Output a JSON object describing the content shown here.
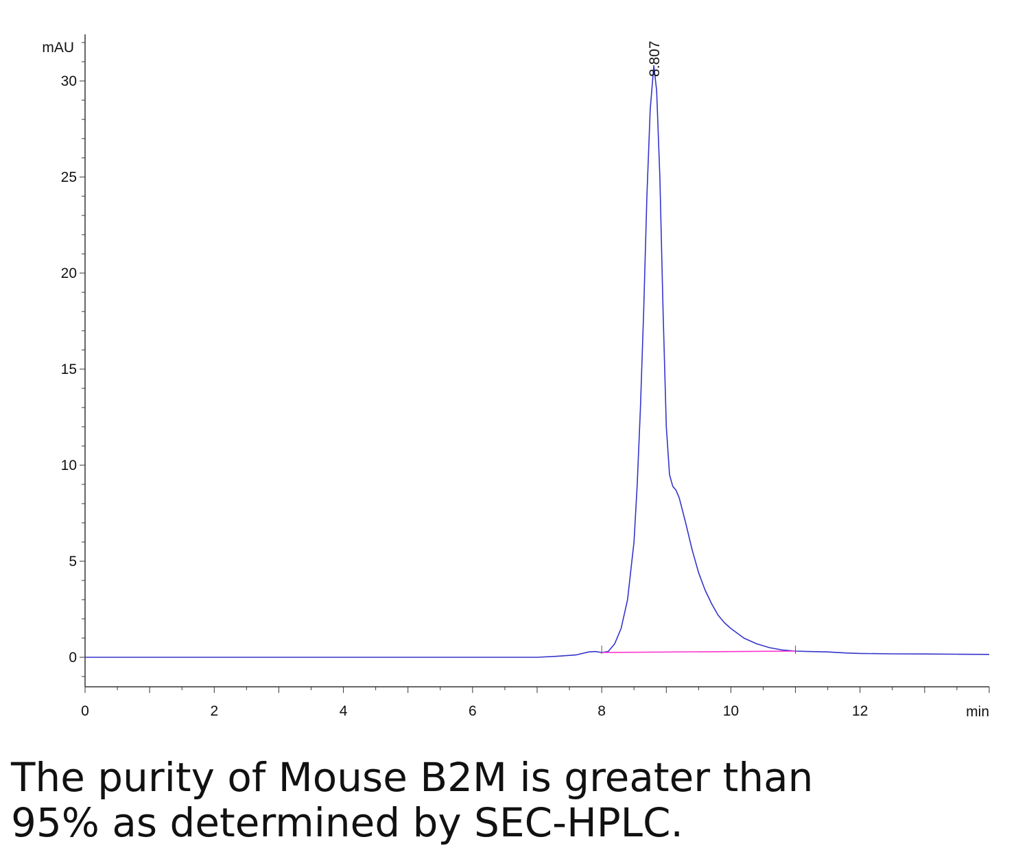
{
  "caption": {
    "line1": "The purity of Mouse B2M is greater than",
    "line2": "95% as determined by SEC-HPLC."
  },
  "chart_data": {
    "type": "line",
    "title": "",
    "xlabel": "min",
    "ylabel": "mAU",
    "xlim": [
      0,
      14
    ],
    "ylim": [
      -1.5,
      32.5
    ],
    "x_ticks": [
      "0",
      "2",
      "4",
      "6",
      "8",
      "10",
      "12"
    ],
    "y_ticks": [
      "0",
      "5",
      "10",
      "15",
      "20",
      "25",
      "30"
    ],
    "grid": false,
    "legend": "none",
    "peak_labels": [
      {
        "x": 8.807,
        "y": 31.0,
        "label": "8.807"
      }
    ],
    "series": [
      {
        "color": "#3333cc",
        "points": [
          [
            0,
            0.0
          ],
          [
            1,
            0.0
          ],
          [
            2,
            0.0
          ],
          [
            3,
            0.0
          ],
          [
            4,
            0.0
          ],
          [
            5,
            0.0
          ],
          [
            6,
            0.0
          ],
          [
            7.0,
            0.0
          ],
          [
            7.3,
            0.05
          ],
          [
            7.6,
            0.12
          ],
          [
            7.8,
            0.28
          ],
          [
            7.9,
            0.3
          ],
          [
            8.0,
            0.25
          ],
          [
            8.1,
            0.3
          ],
          [
            8.2,
            0.7
          ],
          [
            8.3,
            1.5
          ],
          [
            8.4,
            3.0
          ],
          [
            8.5,
            6.0
          ],
          [
            8.55,
            9.0
          ],
          [
            8.6,
            13.0
          ],
          [
            8.65,
            18.0
          ],
          [
            8.7,
            24.0
          ],
          [
            8.75,
            28.5
          ],
          [
            8.807,
            30.8
          ],
          [
            8.85,
            29.5
          ],
          [
            8.9,
            25.0
          ],
          [
            8.95,
            18.0
          ],
          [
            9.0,
            12.0
          ],
          [
            9.05,
            9.5
          ],
          [
            9.1,
            8.9
          ],
          [
            9.15,
            8.7
          ],
          [
            9.2,
            8.3
          ],
          [
            9.3,
            7.0
          ],
          [
            9.4,
            5.6
          ],
          [
            9.5,
            4.4
          ],
          [
            9.6,
            3.5
          ],
          [
            9.7,
            2.8
          ],
          [
            9.8,
            2.2
          ],
          [
            9.9,
            1.8
          ],
          [
            10.0,
            1.5
          ],
          [
            10.2,
            1.0
          ],
          [
            10.4,
            0.7
          ],
          [
            10.6,
            0.5
          ],
          [
            10.8,
            0.38
          ],
          [
            11.0,
            0.32
          ],
          [
            11.2,
            0.3
          ],
          [
            11.5,
            0.28
          ],
          [
            11.8,
            0.22
          ],
          [
            12.0,
            0.2
          ],
          [
            12.5,
            0.18
          ],
          [
            13.0,
            0.17
          ],
          [
            13.5,
            0.16
          ],
          [
            14.0,
            0.15
          ]
        ]
      },
      {
        "color": "#ff33cc",
        "points": [
          [
            8.0,
            0.25
          ],
          [
            11.0,
            0.32
          ]
        ]
      }
    ]
  }
}
